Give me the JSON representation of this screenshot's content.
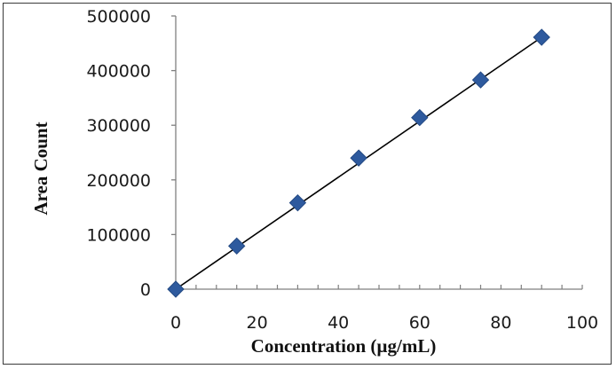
{
  "chart_data": {
    "type": "scatter",
    "title": "",
    "xlabel": "Concentration (µg/mL)",
    "ylabel": "Area Count",
    "xlim": [
      0,
      100
    ],
    "ylim": [
      0,
      500000
    ],
    "x_ticks": [
      "0",
      "20",
      "40",
      "60",
      "80",
      "100"
    ],
    "y_ticks": [
      "0",
      "100000",
      "200000",
      "300000",
      "400000",
      "500000"
    ],
    "grid": false,
    "legend": "none",
    "series": [
      {
        "x": [
          0,
          15,
          30,
          45,
          60,
          75,
          90
        ],
        "y": [
          0,
          79000,
          158000,
          240000,
          314000,
          383000,
          461000
        ],
        "marker": "diamond",
        "color": "#2E5A9E"
      }
    ],
    "trendline": {
      "type": "linear",
      "from": [
        0,
        0
      ],
      "to": [
        90,
        461000
      ],
      "color": "#000000"
    }
  }
}
